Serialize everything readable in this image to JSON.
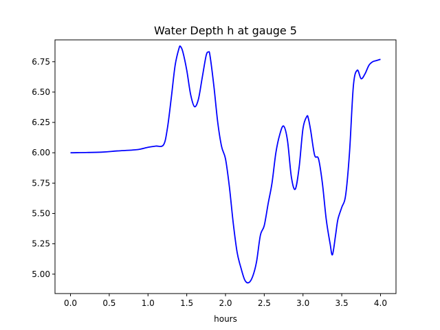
{
  "chart_data": {
    "type": "line",
    "title": "Water Depth h at gauge 5",
    "xlabel": "hours",
    "ylabel": "",
    "xlim": [
      -0.2,
      4.2
    ],
    "ylim": [
      4.84,
      6.93
    ],
    "xticks": [
      0.0,
      0.5,
      1.0,
      1.5,
      2.0,
      2.5,
      3.0,
      3.5,
      4.0
    ],
    "xtick_labels": [
      "0.0",
      "0.5",
      "1.0",
      "1.5",
      "2.0",
      "2.5",
      "3.0",
      "3.5",
      "4.0"
    ],
    "yticks": [
      5.0,
      5.25,
      5.5,
      5.75,
      6.0,
      6.25,
      6.5,
      6.75
    ],
    "ytick_labels": [
      "5.00",
      "5.25",
      "5.50",
      "5.75",
      "6.00",
      "6.25",
      "6.50",
      "6.75"
    ],
    "grid": false,
    "series": [
      {
        "color": "#0000ff",
        "x": [
          0.0,
          0.4,
          0.6,
          0.85,
          1.0,
          1.1,
          1.2,
          1.25,
          1.3,
          1.35,
          1.4,
          1.42,
          1.45,
          1.5,
          1.55,
          1.6,
          1.65,
          1.7,
          1.75,
          1.78,
          1.8,
          1.85,
          1.9,
          1.95,
          2.0,
          2.05,
          2.1,
          2.15,
          2.2,
          2.25,
          2.3,
          2.35,
          2.4,
          2.45,
          2.5,
          2.55,
          2.6,
          2.65,
          2.7,
          2.75,
          2.8,
          2.85,
          2.9,
          2.95,
          3.0,
          3.05,
          3.07,
          3.1,
          3.15,
          3.2,
          3.25,
          3.3,
          3.35,
          3.38,
          3.42,
          3.45,
          3.5,
          3.55,
          3.6,
          3.65,
          3.7,
          3.75,
          3.8,
          3.85,
          3.9,
          3.95,
          4.0
        ],
        "y": [
          6.0,
          6.005,
          6.015,
          6.025,
          6.045,
          6.055,
          6.065,
          6.2,
          6.45,
          6.72,
          6.86,
          6.875,
          6.83,
          6.68,
          6.48,
          6.38,
          6.44,
          6.62,
          6.8,
          6.83,
          6.8,
          6.55,
          6.25,
          6.05,
          5.95,
          5.72,
          5.42,
          5.18,
          5.05,
          4.95,
          4.93,
          4.98,
          5.1,
          5.32,
          5.4,
          5.58,
          5.75,
          6.0,
          6.15,
          6.22,
          6.1,
          5.8,
          5.7,
          5.88,
          6.2,
          6.3,
          6.28,
          6.18,
          5.98,
          5.95,
          5.75,
          5.45,
          5.25,
          5.16,
          5.32,
          5.45,
          5.55,
          5.65,
          6.0,
          6.55,
          6.68,
          6.61,
          6.65,
          6.72,
          6.75,
          6.76,
          6.77
        ]
      }
    ]
  }
}
